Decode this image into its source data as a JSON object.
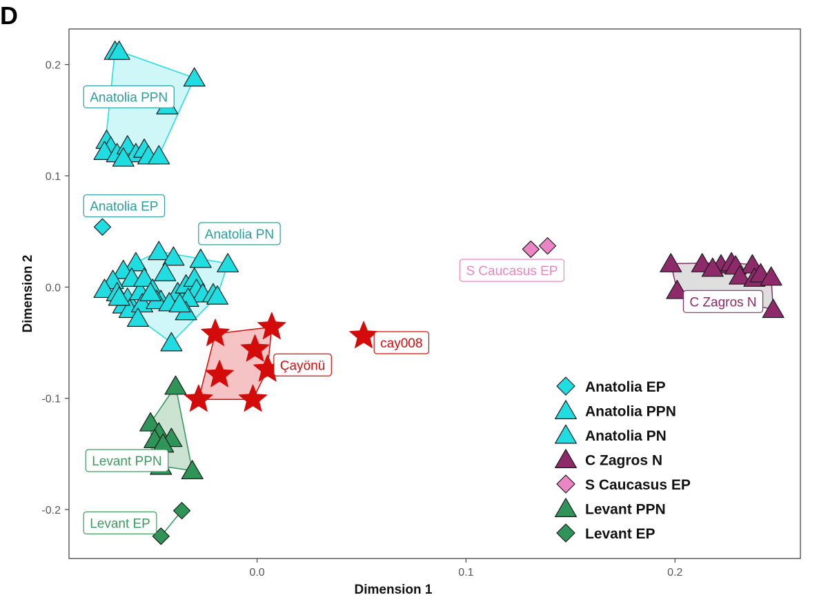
{
  "panel_letter": "D",
  "colors": {
    "anatolia": "#1fdde0",
    "anatolia_label": "#2a9d9d",
    "anatolia_hull": "#c4f5f5",
    "zagros": "#8e2a6a",
    "zagros_label": "#8e2a6a",
    "zagros_hull": "#d6d6d6",
    "caucasus": "#ec85c4",
    "caucasus_label": "#ec85c4",
    "levant": "#2e9458",
    "levant_label": "#3e9a5e",
    "levant_hull": "#bfdcc7",
    "cayonu": "#d40b0b",
    "cayonu_hull": "#f3b4b4"
  },
  "chart_data": {
    "type": "scatter",
    "title": "",
    "xlabel": "Dimension 1",
    "ylabel": "Dimension 2",
    "xlim": [
      -0.09,
      0.26
    ],
    "ylim": [
      -0.244,
      0.232
    ],
    "x_ticks": [
      0.0,
      0.1,
      0.2
    ],
    "x_tick_labels": [
      "0.0",
      "0.1",
      "0.2"
    ],
    "y_ticks": [
      0.2,
      0.1,
      0.0,
      -0.1,
      -0.2
    ],
    "y_tick_labels": [
      "0.2",
      "0.1",
      "0.0",
      "-0.1",
      "-0.2"
    ],
    "grid": false,
    "legend_position": "bottom-right",
    "series": [
      {
        "name": "Anatolia EP",
        "marker": "diamond",
        "color_key": "anatolia",
        "points": [
          [
            -0.074,
            0.054
          ]
        ]
      },
      {
        "name": "Anatolia PPN",
        "marker": "triangle",
        "color_key": "anatolia",
        "hull": true,
        "points": [
          [
            -0.068,
            0.212
          ],
          [
            -0.066,
            0.212
          ],
          [
            -0.03,
            0.188
          ],
          [
            -0.043,
            0.163
          ],
          [
            -0.072,
            0.132
          ],
          [
            -0.07,
            0.126
          ],
          [
            -0.073,
            0.122
          ],
          [
            -0.067,
            0.12
          ],
          [
            -0.062,
            0.127
          ],
          [
            -0.058,
            0.12
          ],
          [
            -0.054,
            0.124
          ],
          [
            -0.052,
            0.118
          ],
          [
            -0.047,
            0.118
          ],
          [
            -0.064,
            0.116
          ]
        ]
      },
      {
        "name": "Anatolia PN",
        "marker": "triangle",
        "color_key": "anatolia",
        "hull": true,
        "points": [
          [
            -0.047,
            0.032
          ],
          [
            -0.04,
            0.027
          ],
          [
            -0.027,
            0.025
          ],
          [
            -0.014,
            0.021
          ],
          [
            -0.058,
            0.022
          ],
          [
            -0.064,
            0.015
          ],
          [
            -0.06,
            0.008
          ],
          [
            -0.069,
            0.006
          ],
          [
            -0.073,
            -0.002
          ],
          [
            -0.067,
            -0.005
          ],
          [
            -0.062,
            -0.01
          ],
          [
            -0.056,
            -0.004
          ],
          [
            -0.054,
            0.008
          ],
          [
            -0.05,
            -0.002
          ],
          [
            -0.044,
            0.013
          ],
          [
            -0.046,
            -0.012
          ],
          [
            -0.038,
            -0.005
          ],
          [
            -0.034,
            0.002
          ],
          [
            -0.03,
            0.008
          ],
          [
            -0.029,
            -0.002
          ],
          [
            -0.026,
            -0.006
          ],
          [
            -0.021,
            -0.006
          ],
          [
            -0.019,
            -0.008
          ],
          [
            -0.064,
            -0.016
          ],
          [
            -0.061,
            -0.02
          ],
          [
            -0.055,
            -0.015
          ],
          [
            -0.048,
            -0.012
          ],
          [
            -0.042,
            -0.014
          ],
          [
            -0.033,
            -0.01
          ],
          [
            -0.034,
            -0.022
          ],
          [
            -0.057,
            -0.028
          ],
          [
            -0.041,
            -0.05
          ],
          [
            -0.037,
            -0.015
          ],
          [
            -0.051,
            -0.005
          ],
          [
            -0.066,
            -0.009
          ]
        ]
      },
      {
        "name": "C Zagros N",
        "marker": "triangle",
        "color_key": "zagros",
        "hull": true,
        "points": [
          [
            0.198,
            0.021
          ],
          [
            0.213,
            0.021
          ],
          [
            0.222,
            0.02
          ],
          [
            0.227,
            0.022
          ],
          [
            0.229,
            0.019
          ],
          [
            0.237,
            0.02
          ],
          [
            0.218,
            0.017
          ],
          [
            0.231,
            0.01
          ],
          [
            0.238,
            0.008
          ],
          [
            0.241,
            0.012
          ],
          [
            0.246,
            0.009
          ],
          [
            0.201,
            -0.003
          ],
          [
            0.247,
            -0.02
          ]
        ]
      },
      {
        "name": "S Caucasus EP",
        "marker": "diamond",
        "color_key": "caucasus",
        "points": [
          [
            0.131,
            0.034
          ],
          [
            0.139,
            0.037
          ]
        ]
      },
      {
        "name": "Levant PPN",
        "marker": "triangle",
        "color_key": "levant",
        "hull": true,
        "points": [
          [
            -0.039,
            -0.089
          ],
          [
            -0.051,
            -0.122
          ],
          [
            -0.047,
            -0.131
          ],
          [
            -0.041,
            -0.136
          ],
          [
            -0.049,
            -0.137
          ],
          [
            -0.045,
            -0.141
          ],
          [
            -0.05,
            -0.156
          ],
          [
            -0.046,
            -0.161
          ],
          [
            -0.031,
            -0.165
          ]
        ]
      },
      {
        "name": "Levant EP",
        "marker": "diamond",
        "color_key": "levant",
        "hull": true,
        "points": [
          [
            -0.036,
            -0.201
          ],
          [
            -0.046,
            -0.224
          ]
        ]
      },
      {
        "name": "Çayönü",
        "marker": "star",
        "color_key": "cayonu",
        "hull": true,
        "points": [
          [
            -0.02,
            -0.042
          ],
          [
            0.007,
            -0.036
          ],
          [
            -0.001,
            -0.056
          ],
          [
            -0.018,
            -0.079
          ],
          [
            0.005,
            -0.074
          ],
          [
            -0.028,
            -0.101
          ],
          [
            -0.002,
            -0.101
          ]
        ]
      },
      {
        "name": "cay008",
        "marker": "star",
        "color_key": "cayonu",
        "points": [
          [
            0.051,
            -0.044
          ]
        ]
      }
    ],
    "annotations": [
      {
        "text": "Anatolia PPN",
        "x": -0.083,
        "y": 0.171,
        "color_key": "anatolia_label"
      },
      {
        "text": "Anatolia EP",
        "x": -0.083,
        "y": 0.073,
        "color_key": "anatolia_label"
      },
      {
        "text": "Anatolia PN",
        "x": -0.028,
        "y": 0.048,
        "color_key": "anatolia_label"
      },
      {
        "text": "S Caucasus EP",
        "x": 0.097,
        "y": 0.015,
        "color_key": "caucasus_label"
      },
      {
        "text": "C Zagros N",
        "x": 0.204,
        "y": -0.013,
        "color_key": "zagros_label"
      },
      {
        "text": "cay008",
        "x": 0.056,
        "y": -0.05,
        "color_key": "cayonu"
      },
      {
        "text": "Çayönü",
        "x": 0.008,
        "y": -0.07,
        "color_key": "cayonu"
      },
      {
        "text": "Levant PPN",
        "x": -0.082,
        "y": -0.156,
        "color_key": "levant_label"
      },
      {
        "text": "Levant EP",
        "x": -0.083,
        "y": -0.212,
        "color_key": "levant_label"
      }
    ],
    "legend": [
      {
        "label": "Anatolia EP",
        "marker": "diamond",
        "color_key": "anatolia"
      },
      {
        "label": "Anatolia PPN",
        "marker": "triangle",
        "color_key": "anatolia"
      },
      {
        "label": "Anatolia PN",
        "marker": "triangle",
        "color_key": "anatolia"
      },
      {
        "label": "C Zagros N",
        "marker": "triangle",
        "color_key": "zagros"
      },
      {
        "label": "S Caucasus EP",
        "marker": "diamond",
        "color_key": "caucasus"
      },
      {
        "label": "Levant PPN",
        "marker": "triangle",
        "color_key": "levant"
      },
      {
        "label": "Levant EP",
        "marker": "diamond",
        "color_key": "levant"
      }
    ]
  }
}
